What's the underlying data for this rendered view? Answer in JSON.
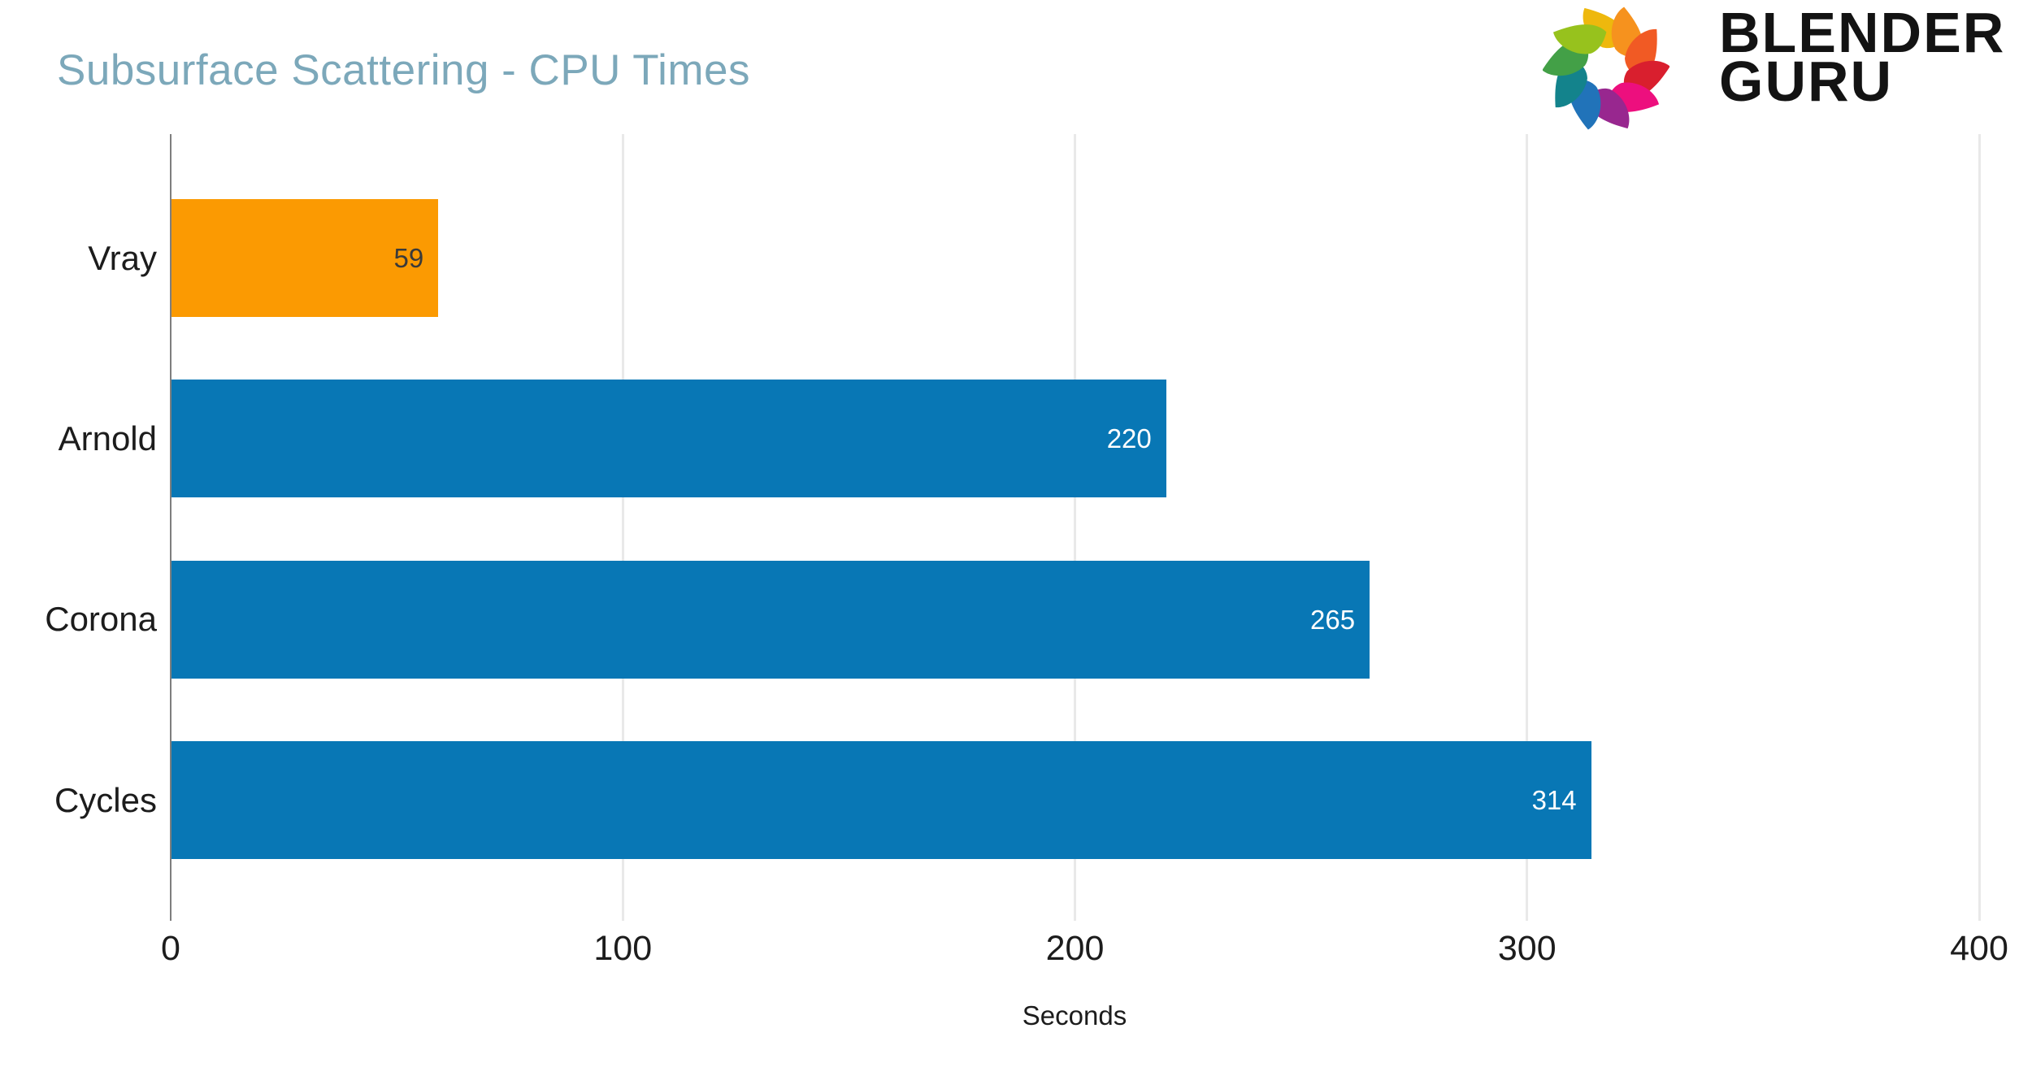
{
  "header": {
    "title": "Subsurface Scattering - CPU Times",
    "title_color": "#7CA8BA"
  },
  "logo": {
    "name": "blender-guru",
    "line1": "BLENDER",
    "line2": "GURU",
    "text_color": "#131313",
    "petal_colors": [
      "#EEB80D",
      "#F6921E",
      "#F15A24",
      "#D91F2E",
      "#ED0F7E",
      "#98278F",
      "#2173B9",
      "#13838C",
      "#43A047",
      "#97C21D"
    ]
  },
  "chart_data": {
    "type": "bar",
    "orientation": "horizontal",
    "title": "Subsurface Scattering - CPU Times",
    "categories": [
      "Vray",
      "Arnold",
      "Corona",
      "Cycles"
    ],
    "values": [
      59,
      220,
      265,
      314
    ],
    "bar_colors": [
      "#FB9A02",
      "#0877B5",
      "#0877B5",
      "#0877B5"
    ],
    "value_label_colors": [
      "#3A3A3A",
      "#FFFFFF",
      "#FFFFFF",
      "#FFFFFF"
    ],
    "xlabel": "Seconds",
    "ylabel": "",
    "x_ticks": [
      0,
      100,
      200,
      300,
      400
    ],
    "xlim": [
      0,
      400
    ],
    "grid": true,
    "legend": "none",
    "gridline_color": "#E9E9E9",
    "axis_line_color": "#7E7E7E",
    "tick_label_color": "#1C1C1C",
    "category_label_color": "#1C1C1C"
  }
}
